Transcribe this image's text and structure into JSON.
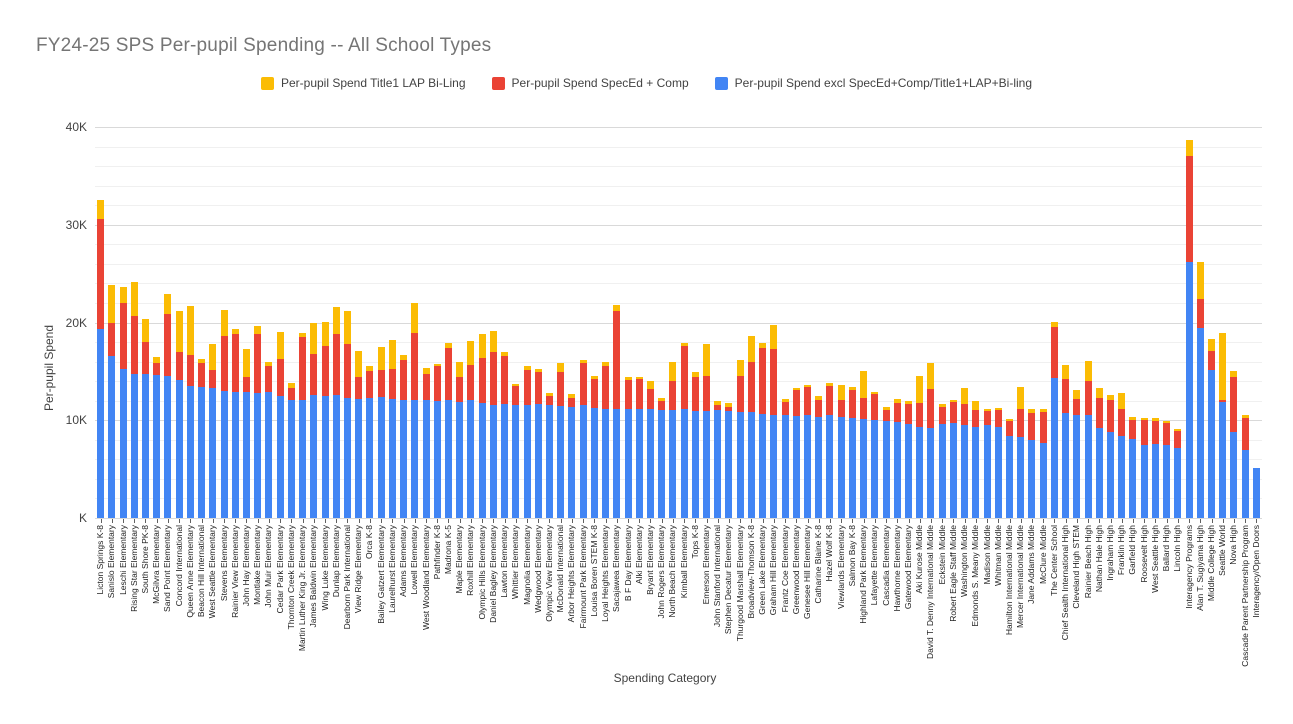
{
  "title": "FY24-25 SPS Per-pupil Spending -- All School Types",
  "legend": {
    "position": "top",
    "items": [
      {
        "label": "Per-pupil Spend Title1 LAP Bi-Ling",
        "color": "#FBBC04"
      },
      {
        "label": "Per-pupil Spend SpecEd + Comp",
        "color": "#EA4335"
      },
      {
        "label": "Per-pupil Spend excl SpecEd+Comp/Title1+LAP+Bi-ling",
        "color": "#4285F4"
      }
    ]
  },
  "colors": {
    "blue_series": "#4285F4",
    "red_series": "#EA4335",
    "yellow_series": "#FBBC04",
    "title_text": "#757575",
    "axis_text": "#424242",
    "major_gridline": "#d9d9d9",
    "minor_gridline": "#f0f0f0"
  },
  "chart_data": {
    "type": "bar",
    "stacked": true,
    "units": "thousands of USD per pupil",
    "title": "FY24-25 SPS Per-pupil Spending -- All School Types",
    "xlabel": "Spending Category",
    "ylabel": "Per-pupil Spend",
    "ylim": [
      0,
      40
    ],
    "ytick_values": [
      0,
      10,
      20,
      30,
      40
    ],
    "ytick_labels": [
      "K",
      "10K",
      "20K",
      "30K",
      "40K"
    ],
    "minor_grid_step": 2,
    "grid": true,
    "legend_position": "top",
    "categories": [
      "Licton Springs K-8",
      "Sanislo Elementary",
      "Leschi Elementary",
      "Rising Star Elementary",
      "South Shore PK-8",
      "McGilvra Elementary",
      "Sand Point Elementary",
      "Concord International",
      "Queen Anne Elementary",
      "Beacon Hill International",
      "West Seattle Elementary",
      "Stevens Elementary",
      "Rainier View Elementary",
      "John Hay Elementary",
      "Montlake Elementary",
      "John Muir Elementary",
      "Cedar Park Elementary",
      "Thornton Creek Elementary",
      "Martin Luther King Jr. Elementary",
      "James Baldwin Elementary",
      "Wing Luke Elementary",
      "Dunlap Elementary",
      "Dearborn Park International",
      "View Ridge Elementary",
      "Orca K-8",
      "Bailey Gatzert Elementary",
      "Laurelhurst Elementary",
      "Adams Elementary",
      "Lowell Elementary",
      "West Woodland Elementary",
      "Pathfinder K-8",
      "Madrona K-5",
      "Maple Elementary",
      "Roxhill Elementary",
      "Olympic Hills Elementary",
      "Daniel Bagley Elementary",
      "Lawton Elementary",
      "Whittier Elementary",
      "Magnolia Elementary",
      "Wedgwood Elementary",
      "Olympic View Elementary",
      "McDonald International",
      "Arbor Heights Elementary",
      "Fairmount Park Elementary",
      "Louisa Boren STEM K-8",
      "Loyal Heights Elementary",
      "Sacajawea Elementary",
      "B F Day Elementary",
      "Alki Elementary",
      "Bryant Elementary",
      "John Rogers Elementary",
      "North Beach Elementary",
      "Kimball Elementary",
      "Tops K-8",
      "Emerson Elementary",
      "John Stanford International",
      "Stephen Decatur Elementary",
      "Thurgood Marshall Elementary",
      "Broadview-Thomson K-8",
      "Green Lake Elementary",
      "Graham Hill Elementary",
      "Frantz Coe Elementary",
      "Greenwood Elementary",
      "Genesee Hill Elementary",
      "Catharine Blaine K-8",
      "Hazel Wolf K-8",
      "Viewlands Elementary",
      "Salmon Bay K-8",
      "Highland Park Elementary",
      "Lafayette Elementary",
      "Cascadia Elementary",
      "Hawthorne Elementary",
      "Gatewood Elementary",
      "Aki Kurose Middle",
      "David T. Denny International Middle",
      "Eckstein Middle",
      "Robert Eagle Staff Middle",
      "Washington Middle",
      "Edmonds S. Meany Middle",
      "Madison Middle",
      "Whitman Middle",
      "Hamilton International Middle",
      "Mercer International Middle",
      "Jane Addams Middle",
      "McClure Middle",
      "The Center School",
      "Chief Sealth International High",
      "Cleveland High STEM",
      "Rainier Beach High",
      "Nathan Hale High",
      "Ingraham High",
      "Franklin High",
      "Garfield High",
      "Roosevelt High",
      "West Seattle High",
      "Ballard High",
      "Lincoln High",
      "Interagency Programs",
      "Alan T. Sugiyama High",
      "Middle College High",
      "Seattle World",
      "Nova High",
      "Cascade Parent Partnership Program",
      "Interagency/Open Doors"
    ],
    "series": [
      {
        "name": "Per-pupil Spend excl SpecEd+Comp/Title1+LAP+Bi-ling",
        "color": "#4285F4",
        "values": [
          19.3,
          16.6,
          15.2,
          14.7,
          14.7,
          14.6,
          14.5,
          14.1,
          13.5,
          13.4,
          13.3,
          13.0,
          12.9,
          12.9,
          12.8,
          12.9,
          12.5,
          12.1,
          12.1,
          12.6,
          12.5,
          12.6,
          12.3,
          12.2,
          12.3,
          12.4,
          12.2,
          12.1,
          12.1,
          12.1,
          12.0,
          12.1,
          11.9,
          12.1,
          11.8,
          11.6,
          11.7,
          11.6,
          11.6,
          11.7,
          11.6,
          11.5,
          11.4,
          11.6,
          11.3,
          11.2,
          11.1,
          11.2,
          11.1,
          11.2,
          11.0,
          11.0,
          11.1,
          10.9,
          10.9,
          11.0,
          10.9,
          10.8,
          10.8,
          10.6,
          10.5,
          10.5,
          10.4,
          10.5,
          10.3,
          10.5,
          10.3,
          10.2,
          10.1,
          10.0,
          9.9,
          9.8,
          9.6,
          9.3,
          9.2,
          9.6,
          9.7,
          9.5,
          9.3,
          9.5,
          9.3,
          8.4,
          8.3,
          8.0,
          7.7,
          14.3,
          10.7,
          10.5,
          10.5,
          9.2,
          8.8,
          8.4,
          8.1,
          7.5,
          7.6,
          7.5,
          7.2,
          26.2,
          19.4,
          15.1,
          11.9,
          8.8,
          7.0,
          5.1
        ]
      },
      {
        "name": "Per-pupil Spend SpecEd + Comp",
        "color": "#EA4335",
        "values": [
          11.3,
          3.3,
          6.8,
          6.0,
          3.3,
          1.3,
          6.4,
          2.9,
          3.2,
          2.5,
          1.8,
          5.6,
          5.9,
          1.5,
          6.0,
          2.6,
          3.8,
          1.2,
          6.4,
          4.2,
          5.1,
          6.2,
          5.5,
          2.2,
          2.7,
          2.7,
          3.0,
          4.1,
          6.8,
          2.6,
          3.5,
          5.3,
          2.5,
          3.6,
          4.6,
          5.4,
          4.9,
          1.9,
          3.5,
          3.2,
          0.9,
          3.4,
          0.9,
          4.3,
          2.9,
          4.3,
          10.1,
          2.9,
          3.1,
          2.0,
          1.0,
          3.0,
          6.5,
          3.5,
          3.6,
          0.6,
          0.5,
          3.7,
          5.2,
          6.8,
          6.8,
          1.4,
          2.7,
          2.9,
          1.8,
          3.0,
          1.8,
          2.9,
          2.2,
          2.7,
          1.1,
          2.0,
          2.1,
          2.5,
          4.0,
          1.8,
          2.2,
          2.2,
          1.7,
          1.4,
          1.7,
          1.5,
          2.8,
          2.7,
          3.1,
          5.2,
          3.5,
          1.7,
          3.5,
          3.1,
          3.3,
          2.8,
          1.9,
          2.5,
          2.3,
          2.2,
          1.7,
          10.8,
          3.0,
          2.0,
          0.2,
          5.6,
          3.2,
          0.0
        ]
      },
      {
        "name": "Per-pupil Spend Title1 LAP Bi-Ling",
        "color": "#FBBC04",
        "values": [
          1.9,
          3.9,
          1.6,
          3.4,
          2.4,
          0.6,
          2.0,
          4.2,
          5.0,
          0.4,
          2.7,
          2.7,
          0.5,
          2.9,
          0.8,
          0.5,
          2.7,
          0.5,
          0.4,
          3.2,
          2.5,
          2.8,
          3.4,
          2.7,
          0.5,
          2.4,
          3.0,
          0.5,
          3.1,
          0.6,
          0.3,
          0.5,
          1.6,
          2.4,
          2.4,
          2.1,
          0.4,
          0.2,
          0.4,
          0.3,
          0.3,
          1.0,
          0.4,
          0.3,
          0.3,
          0.5,
          0.6,
          0.3,
          0.2,
          0.8,
          0.3,
          2.0,
          0.3,
          0.5,
          3.3,
          0.4,
          0.4,
          1.7,
          2.6,
          0.5,
          2.4,
          0.3,
          0.2,
          0.2,
          0.4,
          0.3,
          1.5,
          0.3,
          2.7,
          0.2,
          0.4,
          0.4,
          0.3,
          2.7,
          2.7,
          0.3,
          0.2,
          1.6,
          1.0,
          0.2,
          0.3,
          0.2,
          2.3,
          0.5,
          0.3,
          0.6,
          1.5,
          0.9,
          2.1,
          1.0,
          0.5,
          1.6,
          0.3,
          0.2,
          0.3,
          0.2,
          0.2,
          1.7,
          3.8,
          1.2,
          6.8,
          0.6,
          0.3,
          0.0
        ]
      }
    ]
  }
}
